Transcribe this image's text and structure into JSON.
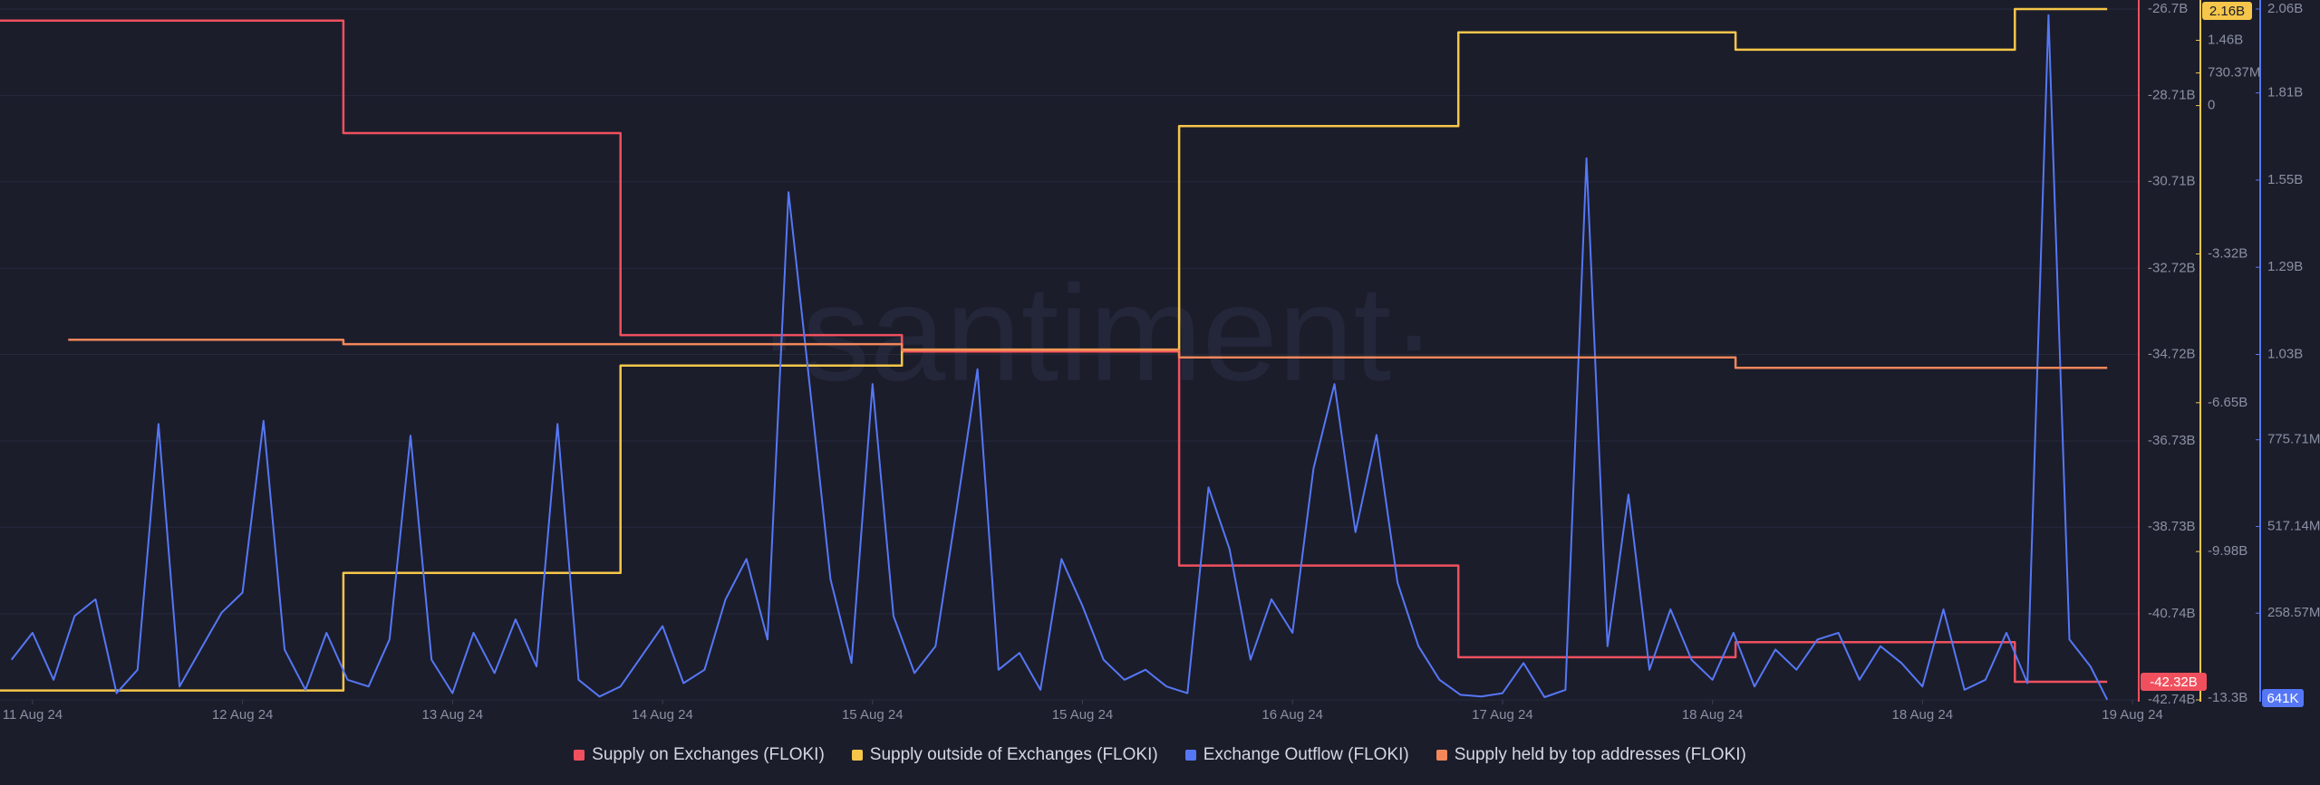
{
  "chart_data": {
    "type": "line",
    "watermark": "·santiment·",
    "xlim": [
      -0.155,
      10.03
    ],
    "xticks": [
      {
        "value": 0,
        "label": "11 Aug 24"
      },
      {
        "value": 1,
        "label": "12 Aug 24"
      },
      {
        "value": 2,
        "label": "13 Aug 24"
      },
      {
        "value": 3,
        "label": "14 Aug 24"
      },
      {
        "value": 4,
        "label": "15 Aug 24"
      },
      {
        "value": 5,
        "label": "15 Aug 24"
      },
      {
        "value": 6,
        "label": "16 Aug 24"
      },
      {
        "value": 7,
        "label": "17 Aug 24"
      },
      {
        "value": 8,
        "label": "18 Aug 24"
      },
      {
        "value": 9,
        "label": "18 Aug 24"
      },
      {
        "value": 10,
        "label": "19 Aug 24"
      }
    ],
    "ylim": [
      -42.74,
      -26.7
    ],
    "yticks": [
      {
        "value": -26.7,
        "label": "-26.7B"
      },
      {
        "value": -28.71,
        "label": "-28.71B"
      },
      {
        "value": -30.71,
        "label": "-30.71B"
      },
      {
        "value": -32.72,
        "label": "-32.72B"
      },
      {
        "value": -34.72,
        "label": "-34.72B"
      },
      {
        "value": -36.73,
        "label": "-36.73B"
      },
      {
        "value": -38.73,
        "label": "-38.73B"
      },
      {
        "value": -40.74,
        "label": "-40.74B"
      },
      {
        "value": -42.74,
        "label": "-42.74B"
      }
    ],
    "y2lim": [
      -13.3,
      2.16
    ],
    "y2ticks": [
      {
        "value": 1.46,
        "label": "1.46B"
      },
      {
        "value": 0.73037,
        "label": "730.37M"
      },
      0,
      {
        "value": -3.32,
        "label": "-3.32B"
      },
      {
        "value": -6.65,
        "label": "-6.65B"
      },
      {
        "value": -9.98,
        "label": "-9.98B"
      },
      {
        "value": -13.3,
        "label": "-13.3B"
      }
    ],
    "y3lim": [
      0,
      2060
    ],
    "y3ticks": [
      {
        "value": 2060,
        "label": "2.06B"
      },
      {
        "value": 1810,
        "label": "1.81B"
      },
      {
        "value": 1550,
        "label": "1.55B"
      },
      {
        "value": 1290,
        "label": "1.29B"
      },
      {
        "value": 1030,
        "label": "1.03B"
      },
      {
        "value": 775.71,
        "label": "775.71M"
      },
      {
        "value": 517.14,
        "label": "517.14M"
      },
      {
        "value": 258.57,
        "label": "258.57M"
      }
    ],
    "grid": true,
    "series": [
      {
        "name": "Supply on Exchanges (FLOKI)",
        "color": "#f0505e",
        "axis": "y",
        "current_label": "-42.32B",
        "x": [
          -0.155,
          1.48,
          1.48,
          2.8,
          2.8,
          4.14,
          4.14,
          5.46,
          5.46,
          6.79,
          6.79,
          8.11,
          8.11,
          9.44,
          9.44,
          9.88
        ],
        "values": [
          -26.97,
          -26.97,
          -29.58,
          -29.58,
          -34.27,
          -34.27,
          -34.65,
          -34.65,
          -39.62,
          -39.62,
          -41.75,
          -41.75,
          -41.4,
          -41.4,
          -42.32,
          -42.32
        ]
      },
      {
        "name": "Supply outside of Exchanges (FLOKI)",
        "color": "#f5c64a",
        "axis": "y2",
        "current_label": "2.16B",
        "x": [
          -0.155,
          1.48,
          1.48,
          2.8,
          2.8,
          4.14,
          4.14,
          5.46,
          5.46,
          6.79,
          6.79,
          8.11,
          8.11,
          9.44,
          9.44,
          9.88
        ],
        "values": [
          -13.09,
          -13.09,
          -10.46,
          -10.46,
          -5.82,
          -5.82,
          -5.46,
          -5.46,
          -0.46,
          -0.46,
          1.64,
          1.64,
          1.25,
          1.25,
          2.16,
          2.16
        ]
      },
      {
        "name": "Exchange Outflow (FLOKI)",
        "color": "#5677f5",
        "axis": "y3",
        "current_label": "641K",
        "x": [
          -0.1,
          0.0,
          0.1,
          0.2,
          0.3,
          0.4,
          0.5,
          0.6,
          0.7,
          0.8,
          0.9,
          1.0,
          1.1,
          1.2,
          1.3,
          1.4,
          1.5,
          1.6,
          1.7,
          1.8,
          1.9,
          2.0,
          2.1,
          2.2,
          2.3,
          2.4,
          2.5,
          2.6,
          2.7,
          2.8,
          2.9,
          3.0,
          3.1,
          3.2,
          3.3,
          3.4,
          3.5,
          3.6,
          3.7,
          3.8,
          3.9,
          4.0,
          4.1,
          4.2,
          4.3,
          4.4,
          4.5,
          4.6,
          4.7,
          4.8,
          4.9,
          5.0,
          5.1,
          5.2,
          5.3,
          5.4,
          5.5,
          5.6,
          5.7,
          5.8,
          5.9,
          6.0,
          6.1,
          6.2,
          6.3,
          6.4,
          6.5,
          6.6,
          6.7,
          6.8,
          6.9,
          7.0,
          7.1,
          7.2,
          7.3,
          7.4,
          7.5,
          7.6,
          7.7,
          7.8,
          7.9,
          8.0,
          8.1,
          8.2,
          8.3,
          8.4,
          8.5,
          8.6,
          8.7,
          8.8,
          8.9,
          9.0,
          9.1,
          9.2,
          9.3,
          9.4,
          9.5,
          9.6,
          9.7,
          9.8,
          9.88
        ],
        "values": [
          120,
          200,
          60,
          250,
          300,
          20,
          90,
          823,
          40,
          150,
          260,
          320,
          832,
          150,
          30,
          200,
          60,
          40,
          180,
          788,
          120,
          20,
          200,
          80,
          240,
          100,
          823,
          60,
          10,
          40,
          130,
          220,
          50,
          90,
          300,
          420,
          180,
          1514,
          942,
          360,
          110,
          942,
          250,
          80,
          160,
          568,
          986,
          90,
          140,
          30,
          420,
          280,
          120,
          60,
          90,
          40,
          20,
          634,
          450,
          120,
          300,
          200,
          690,
          942,
          500,
          790,
          350,
          160,
          60,
          15,
          10,
          20,
          110,
          8,
          30,
          1615,
          160,
          612,
          90,
          270,
          120,
          60,
          200,
          40,
          150,
          90,
          180,
          200,
          60,
          160,
          110,
          40,
          270,
          30,
          60,
          200,
          50,
          2042,
          180,
          100,
          0.641
        ]
      },
      {
        "name": "Supply held by top addresses (FLOKI)",
        "color": "#f2875a",
        "axis": "y",
        "x": [
          0.17,
          1.48,
          1.48,
          4.14,
          4.14,
          5.46,
          5.46,
          8.11,
          8.11,
          9.88
        ],
        "values": [
          -34.38,
          -34.38,
          -34.48,
          -34.48,
          -34.62,
          -34.62,
          -34.79,
          -34.79,
          -35.03,
          -35.03
        ]
      }
    ]
  }
}
